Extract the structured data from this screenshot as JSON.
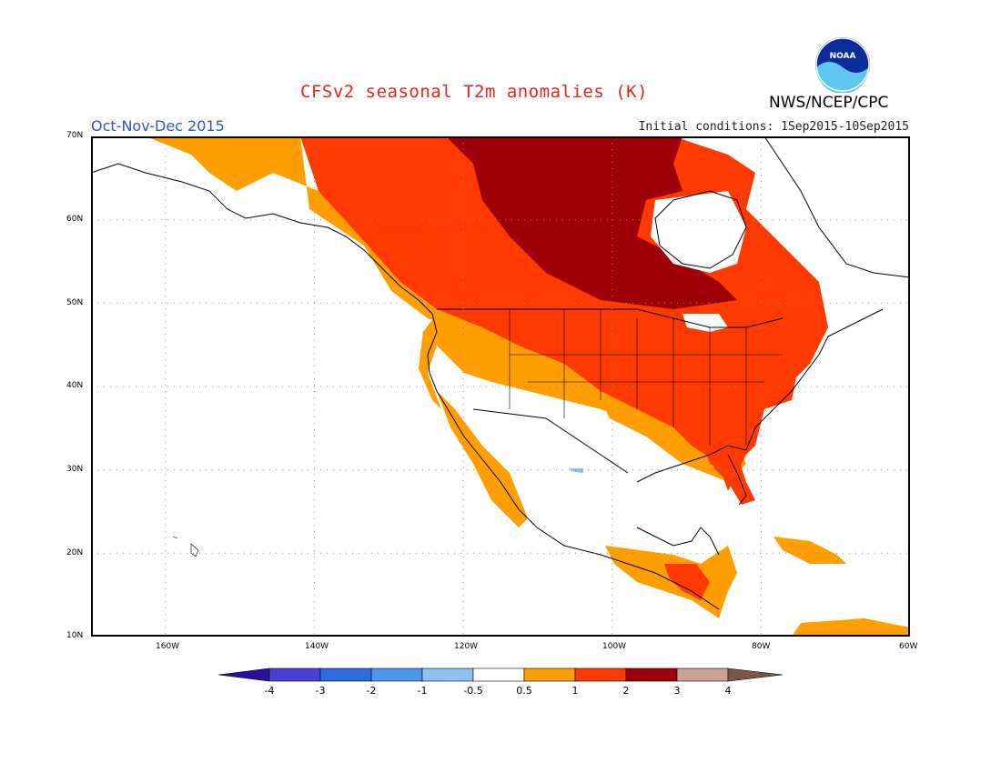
{
  "title": "CFSv2 seasonal T2m anomalies (K)",
  "agency": "NWS/NCEP/CPC",
  "logo_text": "NOAA",
  "period": "Oct-Nov-Dec 2015",
  "initial_conditions": "Initial conditions: 1Sep2015-10Sep2015",
  "latitude_labels": [
    "70N",
    "60N",
    "50N",
    "40N",
    "30N",
    "20N",
    "10N"
  ],
  "longitude_labels": [
    "160W",
    "140W",
    "120W",
    "100W",
    "80W",
    "60W"
  ],
  "legend": {
    "tick_labels": [
      "-4",
      "-3",
      "-2",
      "-1",
      "-0.5",
      "0.5",
      "1",
      "2",
      "3",
      "4"
    ],
    "colors": [
      "#2a0f9c",
      "#4a3fd4",
      "#2c6ce0",
      "#4f97ee",
      "#8fc1f4",
      "#ffffff",
      "#ff9e00",
      "#ff3a00",
      "#9e0009",
      "#c9a291",
      "#7d5445"
    ]
  },
  "anomaly_colors": {
    "neutral": "#ffffff",
    "plus_0_5_to_1": "#ff9e00",
    "plus_1_to_2": "#ff3a00",
    "plus_2_to_3": "#9e0009",
    "minus_1_to_0_5": "#8fc1f4"
  }
}
